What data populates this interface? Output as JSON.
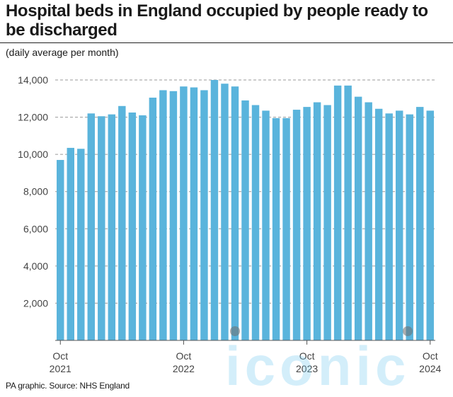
{
  "title": "Hospital beds in England occupied by people ready to be discharged",
  "subtitle": "(daily average per month)",
  "source": "PA graphic. Source: NHS England",
  "watermark": "iconic",
  "colors": {
    "bar": "#5ab4dc",
    "grid": "#9a9a9a",
    "text": "#1a1a1a"
  },
  "chart_data": {
    "type": "bar",
    "title": "Hospital beds in England occupied by people ready to be discharged",
    "subtitle": "(daily average per month)",
    "xlabel": "",
    "ylabel": "",
    "ylim": [
      0,
      14000
    ],
    "yticks": [
      2000,
      4000,
      6000,
      8000,
      10000,
      12000,
      14000
    ],
    "ytick_labels": [
      "2,000",
      "4,000",
      "6,000",
      "8,000",
      "10,000",
      "12,000",
      "14,000"
    ],
    "grid": "horizontal dashed",
    "x_tick_labels": [
      {
        "index": 0,
        "line1": "Oct",
        "line2": "2021"
      },
      {
        "index": 12,
        "line1": "Oct",
        "line2": "2022"
      },
      {
        "index": 24,
        "line1": "Oct",
        "line2": "2023"
      },
      {
        "index": 36,
        "line1": "Oct",
        "line2": "2024"
      }
    ],
    "categories": [
      "Oct 2021",
      "Nov 2021",
      "Dec 2021",
      "Jan 2022",
      "Feb 2022",
      "Mar 2022",
      "Apr 2022",
      "May 2022",
      "Jun 2022",
      "Jul 2022",
      "Aug 2022",
      "Sep 2022",
      "Oct 2022",
      "Nov 2022",
      "Dec 2022",
      "Jan 2023",
      "Feb 2023",
      "Mar 2023",
      "Apr 2023",
      "May 2023",
      "Jun 2023",
      "Jul 2023",
      "Aug 2023",
      "Sep 2023",
      "Oct 2023",
      "Nov 2023",
      "Dec 2023",
      "Jan 2024",
      "Feb 2024",
      "Mar 2024",
      "Apr 2024",
      "May 2024",
      "Jun 2024",
      "Jul 2024",
      "Aug 2024",
      "Sep 2024",
      "Oct 2024"
    ],
    "values": [
      9700,
      10350,
      10300,
      12200,
      12050,
      12150,
      12600,
      12250,
      12100,
      13050,
      13450,
      13400,
      13650,
      13600,
      13450,
      14000,
      13800,
      13650,
      12900,
      12650,
      12350,
      11950,
      11950,
      12400,
      12550,
      12800,
      12650,
      13700,
      13700,
      13100,
      12800,
      12450,
      12200,
      12350,
      12150,
      12550,
      12350
    ]
  }
}
